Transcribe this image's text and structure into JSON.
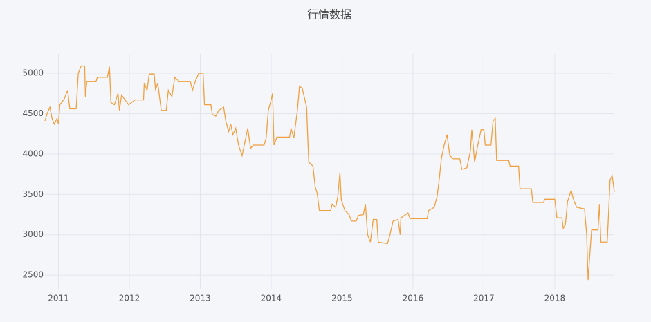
{
  "chart_data": {
    "type": "line",
    "title": "行情数据",
    "color": "#f0a040",
    "grid": true,
    "x": [
      2010.81,
      2010.84,
      2010.88,
      2010.91,
      2010.94,
      2010.98,
      2011.0,
      2011.02,
      2011.08,
      2011.13,
      2011.16,
      2011.25,
      2011.28,
      2011.32,
      2011.37,
      2011.38,
      2011.4,
      2011.53,
      2011.55,
      2011.69,
      2011.72,
      2011.74,
      2011.79,
      2011.84,
      2011.86,
      2011.89,
      2011.94,
      2011.99,
      2012.08,
      2012.2,
      2012.21,
      2012.25,
      2012.28,
      2012.35,
      2012.37,
      2012.4,
      2012.45,
      2012.52,
      2012.55,
      2012.6,
      2012.64,
      2012.7,
      2012.86,
      2012.89,
      2012.93,
      2012.98,
      2013.04,
      2013.06,
      2013.15,
      2013.17,
      2013.22,
      2013.26,
      2013.33,
      2013.36,
      2013.4,
      2013.43,
      2013.46,
      2013.5,
      2013.54,
      2013.59,
      2013.63,
      2013.67,
      2013.71,
      2013.75,
      2013.9,
      2013.93,
      2013.96,
      2014.0,
      2014.02,
      2014.04,
      2014.08,
      2014.26,
      2014.28,
      2014.32,
      2014.37,
      2014.4,
      2014.44,
      2014.5,
      2014.53,
      2014.59,
      2014.62,
      2014.65,
      2014.68,
      2014.84,
      2014.86,
      2014.91,
      2014.94,
      2014.97,
      2014.99,
      2015.04,
      2015.1,
      2015.13,
      2015.2,
      2015.23,
      2015.3,
      2015.33,
      2015.36,
      2015.4,
      2015.44,
      2015.49,
      2015.51,
      2015.64,
      2015.67,
      2015.72,
      2015.79,
      2015.82,
      2015.83,
      2015.93,
      2015.96,
      2016.2,
      2016.22,
      2016.3,
      2016.34,
      2016.37,
      2016.4,
      2016.44,
      2016.48,
      2016.52,
      2016.57,
      2016.66,
      2016.69,
      2016.76,
      2016.81,
      2016.83,
      2016.87,
      2016.91,
      2016.96,
      2017.0,
      2017.02,
      2017.1,
      2017.13,
      2017.16,
      2017.18,
      2017.35,
      2017.37,
      2017.49,
      2017.51,
      2017.67,
      2017.69,
      2017.84,
      2017.86,
      2018.0,
      2018.03,
      2018.1,
      2018.12,
      2018.15,
      2018.18,
      2018.23,
      2018.27,
      2018.31,
      2018.42,
      2018.45,
      2018.47,
      2018.5,
      2018.52,
      2018.61,
      2018.63,
      2018.65,
      2018.74,
      2018.78,
      2018.81,
      2018.84
    ],
    "values": [
      4410,
      4500,
      4580,
      4440,
      4370,
      4440,
      4370,
      4610,
      4680,
      4790,
      4560,
      4560,
      5000,
      5090,
      5090,
      4710,
      4900,
      4900,
      4950,
      4950,
      5080,
      4640,
      4610,
      4750,
      4540,
      4730,
      4670,
      4610,
      4670,
      4670,
      4880,
      4790,
      4990,
      4990,
      4790,
      4880,
      4540,
      4540,
      4790,
      4710,
      4950,
      4900,
      4900,
      4790,
      4900,
      5000,
      5000,
      4610,
      4610,
      4490,
      4470,
      4540,
      4580,
      4410,
      4280,
      4370,
      4240,
      4320,
      4110,
      3980,
      4150,
      4320,
      4070,
      4110,
      4110,
      4200,
      4540,
      4670,
      4750,
      4110,
      4210,
      4210,
      4320,
      4200,
      4540,
      4840,
      4810,
      4580,
      3900,
      3850,
      3600,
      3510,
      3300,
      3300,
      3380,
      3340,
      3470,
      3770,
      3430,
      3300,
      3250,
      3170,
      3170,
      3240,
      3250,
      3380,
      3000,
      2910,
      3190,
      3190,
      2910,
      2890,
      2980,
      3170,
      3190,
      3000,
      3210,
      3270,
      3200,
      3200,
      3300,
      3340,
      3470,
      3680,
      3940,
      4110,
      4240,
      3980,
      3940,
      3940,
      3810,
      3830,
      4040,
      4300,
      3900,
      4090,
      4300,
      4300,
      4110,
      4110,
      4410,
      4440,
      3920,
      3920,
      3850,
      3850,
      3570,
      3570,
      3400,
      3400,
      3440,
      3440,
      3210,
      3210,
      3080,
      3130,
      3410,
      3550,
      3420,
      3340,
      3320,
      3000,
      2440,
      2830,
      3060,
      3060,
      3380,
      2910,
      2910,
      3680,
      3730,
      3530
    ],
    "xlim": [
      2010.81,
      2018.84
    ],
    "xticks": [
      2011,
      2012,
      2013,
      2014,
      2015,
      2016,
      2017,
      2018
    ],
    "ylim": [
      2330,
      5240
    ],
    "yticks": [
      2500,
      3000,
      3500,
      4000,
      4500,
      5000
    ]
  }
}
